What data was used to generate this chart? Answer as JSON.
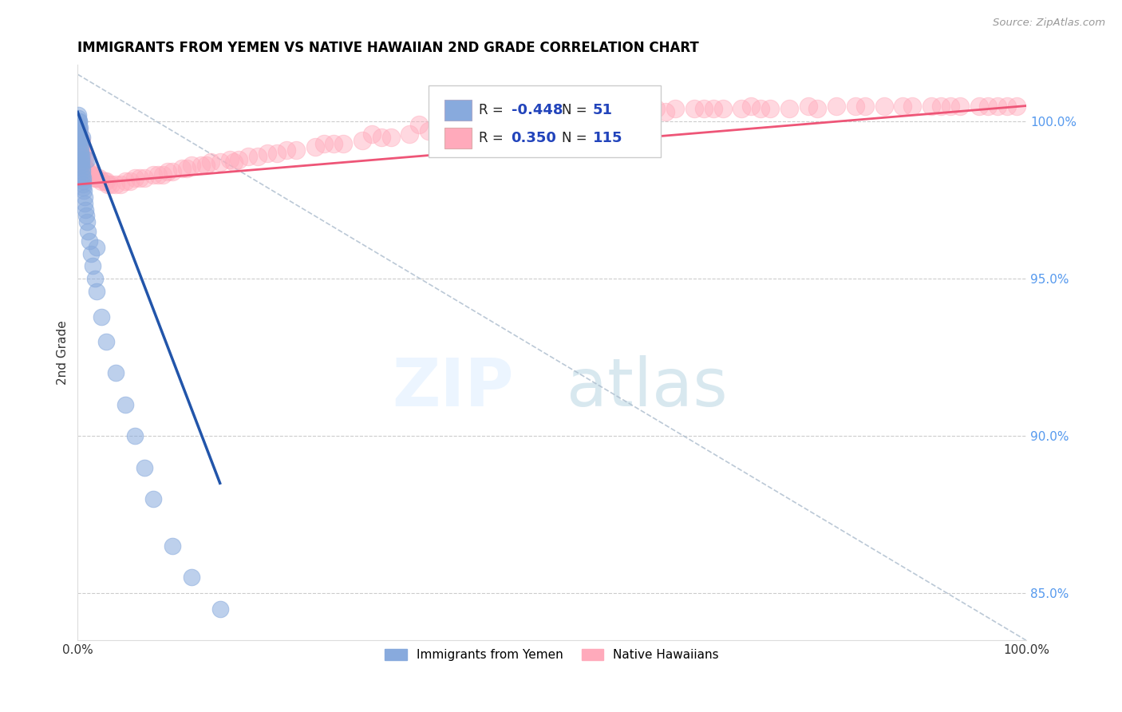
{
  "title": "IMMIGRANTS FROM YEMEN VS NATIVE HAWAIIAN 2ND GRADE CORRELATION CHART",
  "source": "Source: ZipAtlas.com",
  "ylabel": "2nd Grade",
  "blue_label": "Immigrants from Yemen",
  "pink_label": "Native Hawaiians",
  "blue_R": -0.448,
  "blue_N": 51,
  "pink_R": 0.35,
  "pink_N": 115,
  "blue_color": "#88AADD",
  "pink_color": "#FFAABB",
  "blue_line_color": "#2255AA",
  "pink_line_color": "#EE5577",
  "xlim": [
    0.0,
    100.0
  ],
  "ylim": [
    83.5,
    101.8
  ],
  "right_yticks": [
    85.0,
    90.0,
    95.0,
    100.0
  ],
  "blue_scatter_x": [
    0.05,
    0.08,
    0.1,
    0.12,
    0.15,
    0.18,
    0.2,
    0.22,
    0.25,
    0.28,
    0.3,
    0.32,
    0.35,
    0.38,
    0.4,
    0.42,
    0.45,
    0.48,
    0.5,
    0.52,
    0.55,
    0.58,
    0.6,
    0.65,
    0.7,
    0.75,
    0.8,
    0.9,
    1.0,
    1.1,
    1.2,
    1.4,
    1.6,
    1.8,
    2.0,
    2.5,
    3.0,
    4.0,
    5.0,
    6.0,
    7.0,
    8.0,
    10.0,
    12.0,
    15.0,
    0.05,
    0.1,
    0.2,
    0.5,
    1.0,
    2.0
  ],
  "blue_scatter_y": [
    100.1,
    99.9,
    100.0,
    99.8,
    99.7,
    99.6,
    99.5,
    99.4,
    99.3,
    99.2,
    99.1,
    99.0,
    98.9,
    98.8,
    98.7,
    98.6,
    98.5,
    98.4,
    98.3,
    98.2,
    98.1,
    98.0,
    97.9,
    97.8,
    97.6,
    97.4,
    97.2,
    97.0,
    96.8,
    96.5,
    96.2,
    95.8,
    95.4,
    95.0,
    94.6,
    93.8,
    93.0,
    92.0,
    91.0,
    90.0,
    89.0,
    88.0,
    86.5,
    85.5,
    84.5,
    100.2,
    100.0,
    99.8,
    99.5,
    98.8,
    96.0
  ],
  "pink_scatter_x": [
    0.1,
    0.2,
    0.3,
    0.4,
    0.5,
    0.6,
    0.8,
    1.0,
    1.2,
    1.5,
    1.8,
    2.0,
    2.5,
    3.0,
    3.5,
    4.0,
    5.0,
    6.0,
    7.0,
    8.0,
    9.0,
    10.0,
    11.0,
    12.0,
    13.0,
    14.0,
    15.0,
    16.0,
    17.0,
    18.0,
    20.0,
    22.0,
    25.0,
    28.0,
    30.0,
    32.0,
    35.0,
    38.0,
    40.0,
    42.0,
    45.0,
    48.0,
    50.0,
    52.0,
    55.0,
    58.0,
    60.0,
    62.0,
    65.0,
    68.0,
    70.0,
    72.0,
    75.0,
    78.0,
    80.0,
    82.0,
    85.0,
    88.0,
    90.0,
    92.0,
    95.0,
    97.0,
    98.0,
    99.0,
    0.15,
    0.35,
    0.55,
    0.75,
    1.3,
    1.6,
    2.2,
    2.8,
    4.5,
    6.5,
    8.5,
    11.5,
    13.5,
    19.0,
    23.0,
    27.0,
    33.0,
    37.0,
    43.0,
    47.0,
    53.0,
    57.0,
    63.0,
    67.0,
    73.0,
    77.0,
    83.0,
    87.0,
    91.0,
    93.0,
    96.0,
    0.25,
    0.45,
    0.7,
    1.1,
    1.9,
    3.2,
    5.5,
    9.5,
    16.5,
    21.0,
    26.0,
    31.0,
    36.0,
    41.0,
    46.0,
    51.0,
    56.0,
    61.0,
    66.0,
    71.0
  ],
  "pink_scatter_y": [
    99.5,
    99.2,
    99.0,
    98.8,
    98.7,
    98.6,
    98.5,
    98.4,
    98.3,
    98.3,
    98.2,
    98.2,
    98.1,
    98.1,
    98.0,
    98.0,
    98.1,
    98.2,
    98.2,
    98.3,
    98.3,
    98.4,
    98.5,
    98.6,
    98.6,
    98.7,
    98.7,
    98.8,
    98.8,
    98.9,
    99.0,
    99.1,
    99.2,
    99.3,
    99.4,
    99.5,
    99.6,
    99.7,
    99.8,
    99.9,
    100.0,
    100.1,
    100.1,
    100.2,
    100.2,
    100.3,
    100.3,
    100.3,
    100.4,
    100.4,
    100.4,
    100.4,
    100.4,
    100.4,
    100.5,
    100.5,
    100.5,
    100.5,
    100.5,
    100.5,
    100.5,
    100.5,
    100.5,
    100.5,
    99.7,
    99.4,
    99.1,
    98.9,
    98.4,
    98.3,
    98.2,
    98.1,
    98.0,
    98.2,
    98.3,
    98.5,
    98.6,
    98.9,
    99.1,
    99.3,
    99.5,
    99.7,
    99.9,
    100.1,
    100.2,
    100.3,
    100.4,
    100.4,
    100.4,
    100.5,
    100.5,
    100.5,
    100.5,
    100.5,
    100.5,
    99.3,
    99.0,
    98.8,
    98.4,
    98.2,
    98.0,
    98.1,
    98.4,
    98.7,
    99.0,
    99.3,
    99.6,
    99.9,
    100.2,
    100.3,
    100.4,
    100.4,
    100.4,
    100.4,
    100.5
  ],
  "blue_line_x0": 0.0,
  "blue_line_y0": 100.3,
  "blue_line_x1": 15.0,
  "blue_line_y1": 88.5,
  "pink_line_x0": 0.0,
  "pink_line_y0": 98.0,
  "pink_line_x1": 100.0,
  "pink_line_y1": 100.5,
  "dash_line_x0": 0.0,
  "dash_line_y0": 101.5,
  "dash_line_x1": 100.0,
  "dash_line_y1": 83.5
}
